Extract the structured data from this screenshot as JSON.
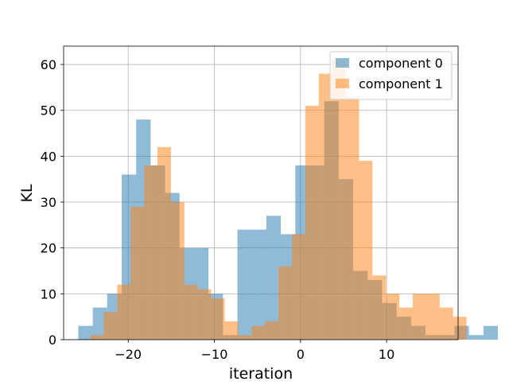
{
  "chart_data": {
    "type": "histogram",
    "title": "",
    "xlabel": "iteration",
    "ylabel": "KL",
    "xlim": [
      -27.5,
      18.3
    ],
    "ylim": [
      0,
      64
    ],
    "xticks": [
      -20,
      -10,
      0,
      10
    ],
    "xtick_labels": [
      "−20",
      "−10",
      "0",
      "10"
    ],
    "yticks": [
      0,
      10,
      20,
      30,
      40,
      50,
      60
    ],
    "ytick_labels": [
      "0",
      "10",
      "20",
      "30",
      "40",
      "50",
      "60"
    ],
    "grid": true,
    "legend_position": "upper right",
    "series": [
      {
        "name": "component 0",
        "color": "#1f77b4",
        "alpha": 0.5,
        "bin_start": -25.8,
        "bin_width": 1.68,
        "counts": [
          3,
          7,
          10,
          36,
          48,
          38,
          32,
          20,
          20,
          10,
          1,
          24,
          24,
          27,
          23,
          38,
          38,
          52,
          35,
          15,
          13,
          8,
          5,
          3,
          1,
          1,
          3,
          1,
          3
        ]
      },
      {
        "name": "component 1",
        "color": "#ff7f0e",
        "alpha": 0.5,
        "bin_start": -24.4,
        "bin_width": 1.56,
        "counts": [
          1,
          6,
          12,
          29,
          38,
          42,
          30,
          12,
          11,
          9,
          4,
          1,
          3,
          4,
          16,
          23,
          51,
          58,
          61,
          53,
          39,
          14,
          10,
          7,
          10,
          10,
          7,
          5,
          0,
          0
        ]
      }
    ]
  }
}
